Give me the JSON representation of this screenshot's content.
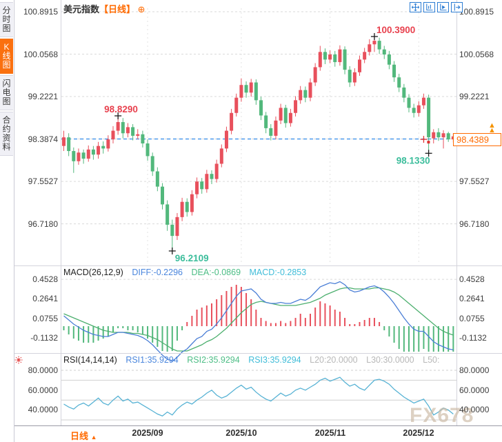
{
  "sidebar": {
    "tabs": [
      {
        "label": "分时图",
        "active": false
      },
      {
        "label": "K线图",
        "active": true
      },
      {
        "label": "闪电图",
        "active": false
      },
      {
        "label": "合约资料",
        "active": false
      }
    ]
  },
  "header": {
    "title": "美元指数",
    "period_tag": "【日线】",
    "add_icon": "⊕"
  },
  "price_axis": {
    "labels": [
      "100.8915",
      "100.0568",
      "99.2221",
      "98.3874",
      "97.5527",
      "96.7180"
    ],
    "values": [
      100.8915,
      100.0568,
      99.2221,
      98.3874,
      97.5527,
      96.718
    ]
  },
  "last_price": {
    "label": "98.4389",
    "value": 98.4389
  },
  "price_line": {
    "value": 98.3874
  },
  "annotations": [
    {
      "label": "98.8290",
      "index": 11,
      "value": 98.829,
      "kind": "high",
      "side": "tl"
    },
    {
      "label": "100.3900",
      "index": 63,
      "value": 100.39,
      "kind": "high",
      "side": "tr"
    },
    {
      "label": "96.2109",
      "index": 22,
      "value": 96.2109,
      "kind": "low",
      "side": "br"
    },
    {
      "label": "98.1330",
      "index": 74,
      "value": 98.133,
      "kind": "low",
      "side": "bl"
    },
    {
      "label": "",
      "index": 73,
      "value": 98.38,
      "kind": "marker",
      "side": "none"
    }
  ],
  "macd_header": {
    "title": "MACD(26,12,9)",
    "diff_label": "DIFF:-0.2296",
    "dea_label": "DEA:-0.0869",
    "macd_label": "MACD:-0.2853",
    "axis_labels": [
      "0.4528",
      "0.2641",
      "0.0755",
      "-0.1132"
    ],
    "axis_values": [
      0.4528,
      0.2641,
      0.0755,
      -0.1132
    ]
  },
  "rsi_header": {
    "title": "RSI(14,14,14)",
    "rsi1_label": "RSI1:35.9294",
    "rsi2_label": "RSI2:35.9294",
    "rsi3_label": "RSI3:35.9294",
    "l20_label": "L20:20.0000",
    "l30_label": "L30:30.0000",
    "l50_label": "L50:",
    "axis_labels": [
      "80.0000",
      "60.0000",
      "40.0000"
    ],
    "axis_values": [
      80,
      60,
      40
    ],
    "ref_lines": [
      80,
      70,
      50,
      30
    ]
  },
  "bottom": {
    "period_label": "日线",
    "period_arrow": "▲",
    "x_labels": [
      {
        "label": "2025/09",
        "index": 17
      },
      {
        "label": "2025/10",
        "index": 36
      },
      {
        "label": "2025/11",
        "index": 54
      },
      {
        "label": "2025/12",
        "index": 72
      }
    ]
  },
  "watermark": "FX678",
  "colors": {
    "up": "#e8505c",
    "down": "#52b87c",
    "diff_line": "#4a7ed6",
    "dea_line": "#4caf6e",
    "rsi_line": "#56b2d4",
    "level_line": "#1e7fe8",
    "accent": "#ff6a00",
    "ann_high": "#e8414e",
    "ann_low": "#3bbd9b",
    "grid": "#d9d9d9"
  },
  "chart_data": {
    "type": "candlestick+macd+rsi",
    "title": "美元指数 日线 (US Dollar Index, daily)",
    "price_ylim": [
      95.9,
      101.0
    ],
    "macd_ylim": [
      -0.3,
      0.55
    ],
    "rsi_ylim": [
      24,
      86
    ],
    "x_months": [
      "2025/09",
      "2025/10",
      "2025/11",
      "2025/12"
    ],
    "candles": [
      [
        98.25,
        98.55,
        98.15,
        98.42
      ],
      [
        98.42,
        98.5,
        98.05,
        98.15
      ],
      [
        98.15,
        98.22,
        97.72,
        97.95
      ],
      [
        97.95,
        98.2,
        97.88,
        98.12
      ],
      [
        98.12,
        98.18,
        97.9,
        98.0
      ],
      [
        98.0,
        98.26,
        97.94,
        98.18
      ],
      [
        98.18,
        98.25,
        97.98,
        98.08
      ],
      [
        98.08,
        98.33,
        98.0,
        98.25
      ],
      [
        98.25,
        98.34,
        98.1,
        98.2
      ],
      [
        98.2,
        98.46,
        98.14,
        98.38
      ],
      [
        98.38,
        98.64,
        98.3,
        98.55
      ],
      [
        98.55,
        98.829,
        98.47,
        98.72
      ],
      [
        98.72,
        98.8,
        98.4,
        98.5
      ],
      [
        98.5,
        98.7,
        98.42,
        98.62
      ],
      [
        98.62,
        98.68,
        98.36,
        98.45
      ],
      [
        98.45,
        98.58,
        98.38,
        98.48
      ],
      [
        98.48,
        98.55,
        98.22,
        98.3
      ],
      [
        98.3,
        98.38,
        97.96,
        98.05
      ],
      [
        98.05,
        98.12,
        97.66,
        97.75
      ],
      [
        97.75,
        97.83,
        97.36,
        97.45
      ],
      [
        97.45,
        97.52,
        97.0,
        97.1
      ],
      [
        97.1,
        97.18,
        96.58,
        96.7
      ],
      [
        96.7,
        96.8,
        96.2109,
        96.48
      ],
      [
        96.48,
        96.93,
        96.4,
        96.85
      ],
      [
        96.85,
        97.23,
        96.77,
        97.15
      ],
      [
        97.15,
        97.22,
        96.86,
        96.95
      ],
      [
        96.95,
        97.38,
        96.88,
        97.3
      ],
      [
        97.3,
        97.63,
        97.22,
        97.55
      ],
      [
        97.55,
        97.62,
        97.31,
        97.4
      ],
      [
        97.4,
        97.78,
        97.33,
        97.7
      ],
      [
        97.7,
        97.77,
        97.5,
        97.6
      ],
      [
        97.6,
        97.98,
        97.53,
        97.9
      ],
      [
        97.9,
        98.28,
        97.83,
        98.2
      ],
      [
        98.2,
        98.63,
        98.13,
        98.55
      ],
      [
        98.55,
        98.98,
        98.48,
        98.9
      ],
      [
        98.9,
        99.28,
        98.83,
        99.2
      ],
      [
        99.2,
        99.58,
        99.12,
        99.45
      ],
      [
        99.45,
        99.52,
        99.2,
        99.3
      ],
      [
        99.3,
        99.57,
        99.22,
        99.5
      ],
      [
        99.5,
        99.56,
        99.06,
        99.15
      ],
      [
        99.15,
        99.22,
        98.76,
        98.85
      ],
      [
        98.85,
        98.92,
        98.5,
        98.6
      ],
      [
        98.6,
        98.68,
        98.36,
        98.45
      ],
      [
        98.45,
        98.83,
        98.38,
        98.75
      ],
      [
        98.75,
        99.08,
        98.68,
        99.0
      ],
      [
        99.0,
        99.06,
        98.61,
        98.7
      ],
      [
        98.7,
        98.98,
        98.63,
        98.9
      ],
      [
        98.9,
        99.23,
        98.83,
        99.15
      ],
      [
        99.15,
        99.43,
        99.08,
        99.35
      ],
      [
        99.35,
        99.42,
        99.11,
        99.2
      ],
      [
        99.2,
        99.58,
        99.13,
        99.5
      ],
      [
        99.5,
        99.88,
        99.43,
        99.8
      ],
      [
        99.8,
        100.22,
        99.73,
        100.1
      ],
      [
        100.1,
        100.17,
        99.86,
        99.95
      ],
      [
        99.95,
        100.13,
        99.88,
        100.05
      ],
      [
        100.05,
        100.12,
        99.81,
        99.9
      ],
      [
        99.9,
        100.23,
        99.83,
        100.15
      ],
      [
        100.15,
        100.21,
        99.66,
        99.75
      ],
      [
        99.75,
        99.82,
        99.41,
        99.5
      ],
      [
        99.5,
        99.78,
        99.43,
        99.7
      ],
      [
        99.7,
        100.03,
        99.63,
        99.95
      ],
      [
        99.95,
        100.18,
        99.88,
        100.1
      ],
      [
        100.1,
        100.35,
        100.03,
        100.25
      ],
      [
        100.25,
        100.39,
        100.1,
        100.32
      ],
      [
        100.32,
        100.38,
        100.06,
        100.15
      ],
      [
        100.15,
        100.22,
        99.96,
        100.05
      ],
      [
        100.05,
        100.12,
        99.76,
        99.85
      ],
      [
        99.85,
        99.92,
        99.51,
        99.6
      ],
      [
        99.6,
        99.67,
        99.31,
        99.4
      ],
      [
        99.4,
        99.47,
        99.11,
        99.2
      ],
      [
        99.2,
        99.27,
        98.91,
        99.0
      ],
      [
        99.0,
        99.08,
        98.81,
        98.9
      ],
      [
        98.9,
        99.13,
        98.83,
        99.05
      ],
      [
        99.05,
        99.28,
        98.98,
        99.2
      ],
      [
        99.2,
        99.26,
        98.133,
        98.42
      ],
      [
        98.4,
        98.58,
        98.3,
        98.52
      ],
      [
        98.52,
        98.6,
        98.35,
        98.42
      ],
      [
        98.42,
        98.56,
        98.2,
        98.5
      ],
      [
        98.5,
        98.53,
        98.33,
        98.38
      ],
      [
        98.38,
        98.5,
        98.32,
        98.4389
      ]
    ],
    "macd": {
      "diff": [
        0.1,
        0.06,
        0.02,
        -0.01,
        -0.04,
        -0.06,
        -0.08,
        -0.09,
        -0.1,
        -0.1,
        -0.08,
        -0.06,
        -0.06,
        -0.07,
        -0.08,
        -0.09,
        -0.11,
        -0.14,
        -0.18,
        -0.23,
        -0.28,
        -0.32,
        -0.34,
        -0.3,
        -0.25,
        -0.22,
        -0.17,
        -0.12,
        -0.1,
        -0.05,
        -0.03,
        0.02,
        0.08,
        0.15,
        0.22,
        0.29,
        0.34,
        0.35,
        0.36,
        0.32,
        0.26,
        0.23,
        0.22,
        0.22,
        0.23,
        0.22,
        0.22,
        0.24,
        0.26,
        0.25,
        0.28,
        0.33,
        0.38,
        0.4,
        0.42,
        0.41,
        0.43,
        0.4,
        0.35,
        0.33,
        0.34,
        0.36,
        0.38,
        0.39,
        0.37,
        0.33,
        0.28,
        0.22,
        0.15,
        0.08,
        0.02,
        -0.03,
        -0.05,
        -0.05,
        -0.1,
        -0.15,
        -0.18,
        -0.2,
        -0.22,
        -0.2296
      ],
      "dea": [
        0.12,
        0.1,
        0.08,
        0.06,
        0.04,
        0.02,
        0.0,
        -0.02,
        -0.04,
        -0.05,
        -0.06,
        -0.06,
        -0.06,
        -0.06,
        -0.07,
        -0.07,
        -0.08,
        -0.09,
        -0.11,
        -0.13,
        -0.16,
        -0.19,
        -0.22,
        -0.24,
        -0.24,
        -0.24,
        -0.22,
        -0.2,
        -0.18,
        -0.15,
        -0.13,
        -0.1,
        -0.06,
        -0.02,
        0.03,
        0.08,
        0.13,
        0.17,
        0.21,
        0.23,
        0.24,
        0.23,
        0.22,
        0.21,
        0.2,
        0.2,
        0.2,
        0.2,
        0.21,
        0.22,
        0.23,
        0.25,
        0.27,
        0.3,
        0.32,
        0.34,
        0.36,
        0.37,
        0.37,
        0.36,
        0.36,
        0.36,
        0.36,
        0.37,
        0.37,
        0.36,
        0.35,
        0.33,
        0.3,
        0.26,
        0.22,
        0.18,
        0.14,
        0.1,
        0.06,
        0.02,
        -0.02,
        -0.05,
        -0.07,
        -0.0869
      ],
      "hist": [
        -0.04,
        -0.08,
        -0.12,
        -0.14,
        -0.16,
        -0.16,
        -0.16,
        -0.14,
        -0.12,
        -0.1,
        -0.06,
        -0.02,
        -0.02,
        -0.04,
        -0.04,
        -0.06,
        -0.08,
        -0.12,
        -0.16,
        -0.2,
        -0.24,
        -0.26,
        -0.24,
        -0.14,
        -0.04,
        0.04,
        0.1,
        0.16,
        0.18,
        0.2,
        0.22,
        0.26,
        0.3,
        0.34,
        0.38,
        0.4,
        0.38,
        0.32,
        0.26,
        0.16,
        0.08,
        0.05,
        0.03,
        0.03,
        0.05,
        0.03,
        0.05,
        0.08,
        0.12,
        0.08,
        0.12,
        0.18,
        0.24,
        0.22,
        0.2,
        0.16,
        0.14,
        0.08,
        0.02,
        0.02,
        0.04,
        0.06,
        0.08,
        0.08,
        0.04,
        -0.04,
        -0.1,
        -0.16,
        -0.22,
        -0.26,
        -0.28,
        -0.3,
        -0.26,
        -0.22,
        -0.26,
        -0.3,
        -0.29,
        -0.28,
        -0.29,
        -0.2853
      ]
    },
    "rsi": [
      46,
      43,
      41,
      45,
      47,
      44,
      48,
      52,
      47,
      45,
      50,
      54,
      49,
      51,
      47,
      48,
      45,
      42,
      39,
      36,
      34,
      38,
      35,
      41,
      45,
      48,
      46,
      50,
      53,
      57,
      60,
      55,
      52,
      54,
      58,
      62,
      65,
      61,
      63,
      58,
      54,
      51,
      49,
      53,
      57,
      54,
      56,
      60,
      62,
      60,
      63,
      66,
      70,
      72,
      69,
      71,
      73,
      68,
      64,
      66,
      62,
      60,
      65,
      70,
      71,
      69,
      66,
      61,
      57,
      53,
      50,
      47,
      49,
      51,
      44,
      35,
      38,
      42,
      40,
      35.9294
    ]
  }
}
